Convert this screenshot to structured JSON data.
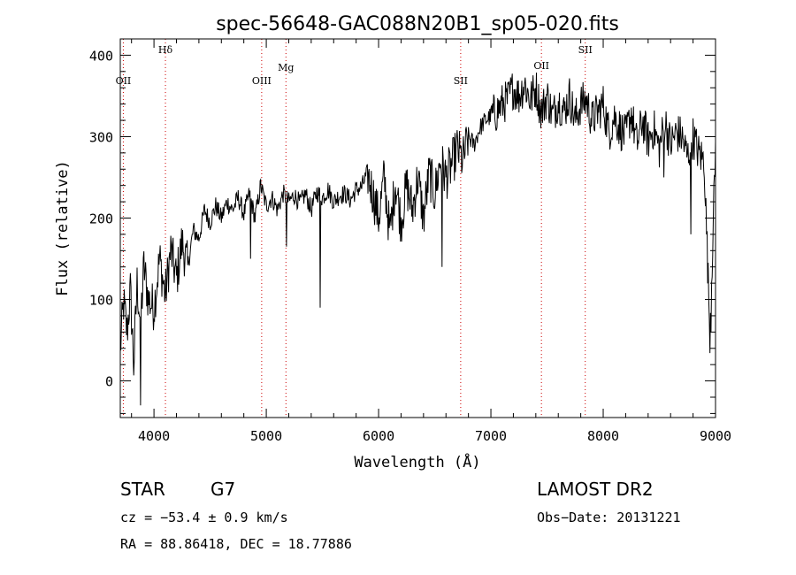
{
  "chart_data": {
    "type": "line",
    "title": "spec-56648-GAC088N20B1_sp05-020.fits",
    "xlabel": "Wavelength (Å)",
    "ylabel": "Flux (relative)",
    "xlim": [
      3700,
      9000
    ],
    "ylim": [
      -45,
      420
    ],
    "x_ticks": [
      4000,
      5000,
      6000,
      7000,
      8000,
      9000
    ],
    "y_ticks": [
      0,
      100,
      200,
      300,
      400
    ],
    "grid": false,
    "series": [
      {
        "x": [
          3700,
          3730,
          3760,
          3790,
          3820,
          3850,
          3880,
          3910,
          3950,
          4000,
          4050,
          4100,
          4150,
          4200,
          4250,
          4300,
          4350,
          4400,
          4450,
          4500,
          4550,
          4600,
          4650,
          4700,
          4750,
          4800,
          4850,
          4900,
          4950,
          5000,
          5050,
          5100,
          5150,
          5200,
          5250,
          5300,
          5350,
          5400,
          5450,
          5500,
          5550,
          5600,
          5650,
          5700,
          5750,
          5800,
          5850,
          5900,
          5950,
          6000,
          6050,
          6100,
          6150,
          6200,
          6250,
          6300,
          6350,
          6400,
          6450,
          6500,
          6550,
          6600,
          6650,
          6700,
          6750,
          6800,
          6850,
          6900,
          6950,
          7000,
          7050,
          7100,
          7150,
          7200,
          7250,
          7300,
          7350,
          7400,
          7450,
          7500,
          7550,
          7600,
          7650,
          7700,
          7750,
          7800,
          7850,
          7900,
          7950,
          8000,
          8050,
          8100,
          8150,
          8200,
          8250,
          8300,
          8350,
          8400,
          8450,
          8500,
          8550,
          8600,
          8650,
          8700,
          8750,
          8800,
          8850,
          8900,
          8950,
          9000
        ],
        "y": [
          40,
          95,
          60,
          110,
          20,
          120,
          70,
          140,
          100,
          90,
          150,
          105,
          160,
          125,
          170,
          140,
          185,
          175,
          210,
          195,
          215,
          200,
          220,
          210,
          225,
          205,
          230,
          200,
          240,
          215,
          225,
          210,
          230,
          220,
          228,
          218,
          230,
          210,
          232,
          225,
          235,
          220,
          228,
          230,
          222,
          235,
          238,
          255,
          230,
          200,
          250,
          180,
          245,
          195,
          240,
          210,
          250,
          200,
          255,
          230,
          270,
          250,
          265,
          285,
          270,
          300,
          290,
          310,
          320,
          325,
          330,
          340,
          345,
          360,
          350,
          365,
          345,
          360,
          330,
          350,
          325,
          345,
          330,
          350,
          320,
          340,
          345,
          320,
          330,
          340,
          305,
          325,
          310,
          300,
          330,
          290,
          320,
          295,
          310,
          285,
          320,
          290,
          305,
          300,
          275,
          300,
          280,
          270,
          60,
          285
        ],
        "absorption_dips": [
          {
            "x": 3880,
            "y": -30
          },
          {
            "x": 4860,
            "y": 150
          },
          {
            "x": 5180,
            "y": 165
          },
          {
            "x": 5480,
            "y": 90
          },
          {
            "x": 6563,
            "y": 140
          },
          {
            "x": 8540,
            "y": 250
          },
          {
            "x": 8780,
            "y": 180
          },
          {
            "x": 8960,
            "y": 60
          }
        ]
      }
    ],
    "line_markers": [
      {
        "label": "OII",
        "wavelength": 3727
      },
      {
        "label": "Hδ",
        "wavelength": 4102
      },
      {
        "label": "OIII",
        "wavelength": 4959
      },
      {
        "label": "Mg",
        "wavelength": 5175
      },
      {
        "label": "SII",
        "wavelength": 6731
      },
      {
        "label": "OII",
        "wavelength": 7450
      },
      {
        "label": "SII",
        "wavelength": 7840
      }
    ],
    "colors": {
      "spectrum": "#000000",
      "markers": "#cc0000"
    }
  },
  "info": {
    "class_label": "STAR",
    "subclass": "G7",
    "survey": "LAMOST DR2",
    "cz": "cz = −53.4 ± 0.9 km/s",
    "obs_date": "Obs−Date: 20131221",
    "coords": "RA =  88.86418, DEC =  18.77886"
  }
}
